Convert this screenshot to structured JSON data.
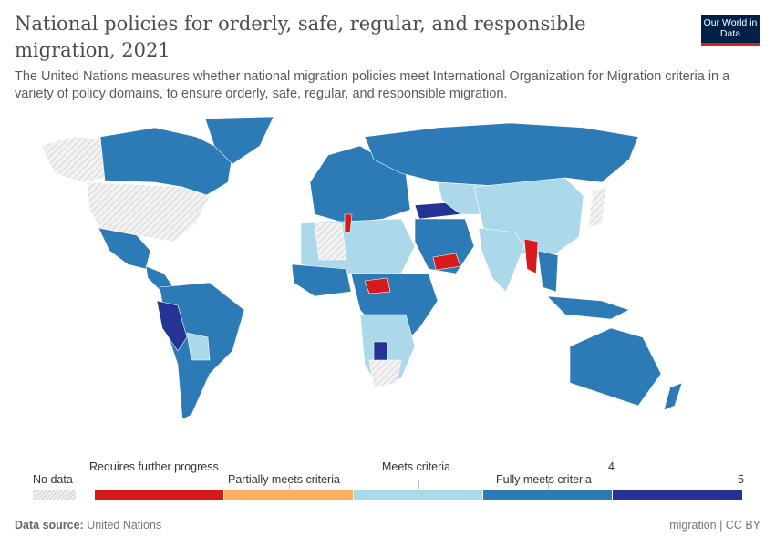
{
  "header": {
    "title": "National policies for orderly, safe, regular, and responsible migration, 2021",
    "subtitle": "The United Nations measures whether national migration policies meet International Organization for Migration criteria in a variety of policy domains, to ensure orderly, safe, regular, and responsible migration.",
    "logo": "Our World in Data"
  },
  "legend": {
    "no_data": "No data",
    "labels": [
      "Requires further progress",
      "Partially meets criteria",
      "Meets criteria",
      "Fully meets criteria"
    ],
    "ticks": [
      "4",
      "5"
    ],
    "colors": [
      "#d7191c",
      "#fdae61",
      "#abd9e9",
      "#2c7bb6",
      "#253494"
    ],
    "no_data_color": "#e0e0e0"
  },
  "footer": {
    "source_label": "Data source:",
    "source": "United Nations",
    "right": "migration | CC BY"
  }
}
